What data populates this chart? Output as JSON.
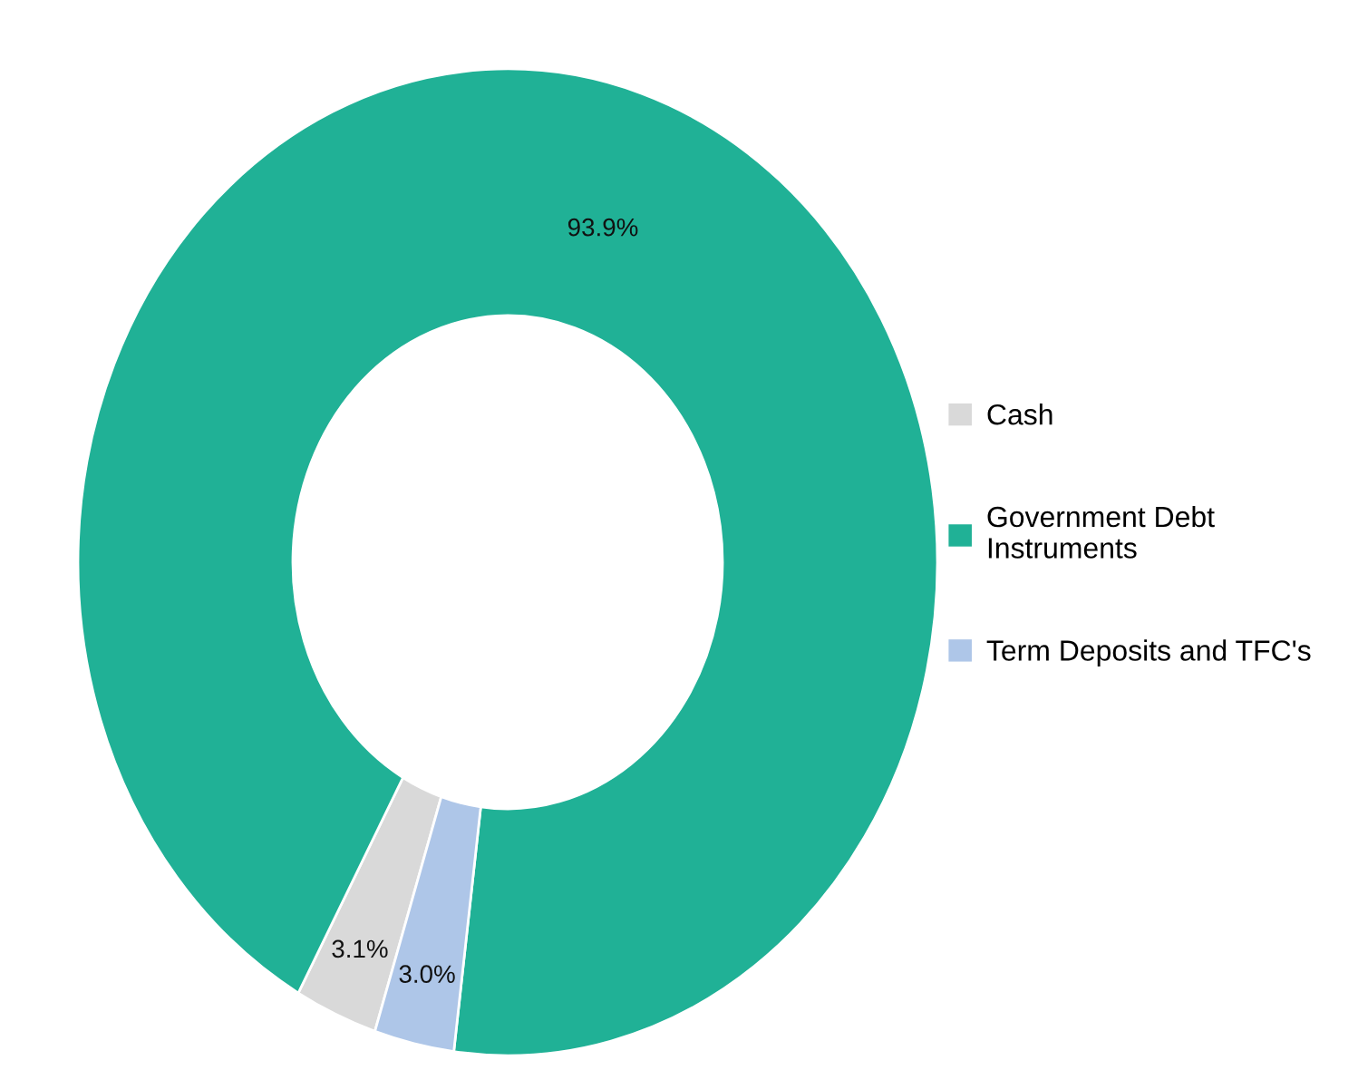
{
  "chart_data": {
    "type": "donut",
    "categories": [
      "Cash",
      "Government Debt\nInstruments",
      "Term Deposits and TFC's"
    ],
    "values": [
      3.1,
      93.9,
      3.0
    ],
    "colors": [
      "#d9d9d9",
      "#20b196",
      "#aec6e8"
    ],
    "value_labels": [
      "3.1%",
      "93.9%",
      "3.0%"
    ],
    "legend": "right"
  }
}
